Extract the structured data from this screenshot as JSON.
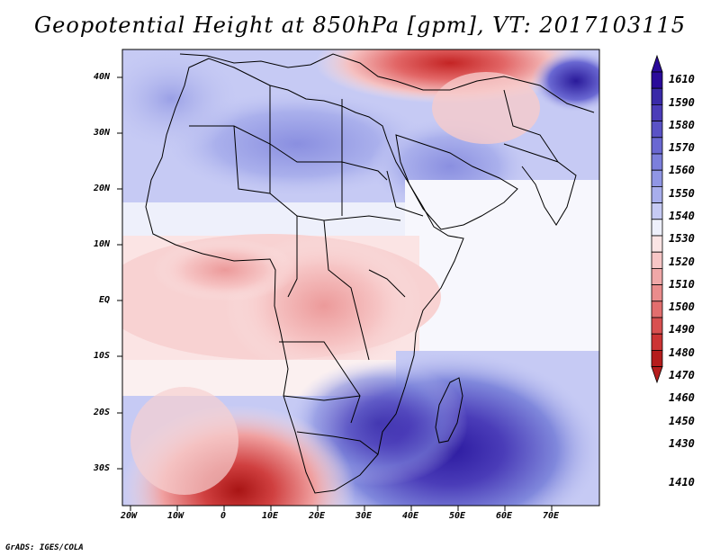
{
  "title": "Geopotential Height at 850hPa [gpm], VT: 2017103115",
  "credit": "GrADS: IGES/COLA",
  "map": {
    "lat_labels": [
      "40N",
      "30N",
      "20N",
      "10N",
      "EQ",
      "10S",
      "20S",
      "30S"
    ],
    "lon_labels": [
      "20W",
      "10W",
      "0",
      "10E",
      "20E",
      "30E",
      "40E",
      "50E",
      "60E",
      "70E"
    ]
  },
  "colorbar": {
    "levels": [
      "1610",
      "1590",
      "1580",
      "1570",
      "1560",
      "1550",
      "1540",
      "1530",
      "1520",
      "1510",
      "1500",
      "1490",
      "1480",
      "1470",
      "1460",
      "1450",
      "1430",
      "1410"
    ],
    "colors": [
      "#2a0a9a",
      "#3a2aa8",
      "#4b3cb8",
      "#5a52c6",
      "#6a68d2",
      "#7c7fdc",
      "#9096e4",
      "#a8aeec",
      "#c6caf4",
      "#eef0fb",
      "#fbe4e4",
      "#f7c6c6",
      "#f0a8a8",
      "#ea8c8c",
      "#e26e6e",
      "#d85050",
      "#cc3434",
      "#b51c1c"
    ]
  }
}
